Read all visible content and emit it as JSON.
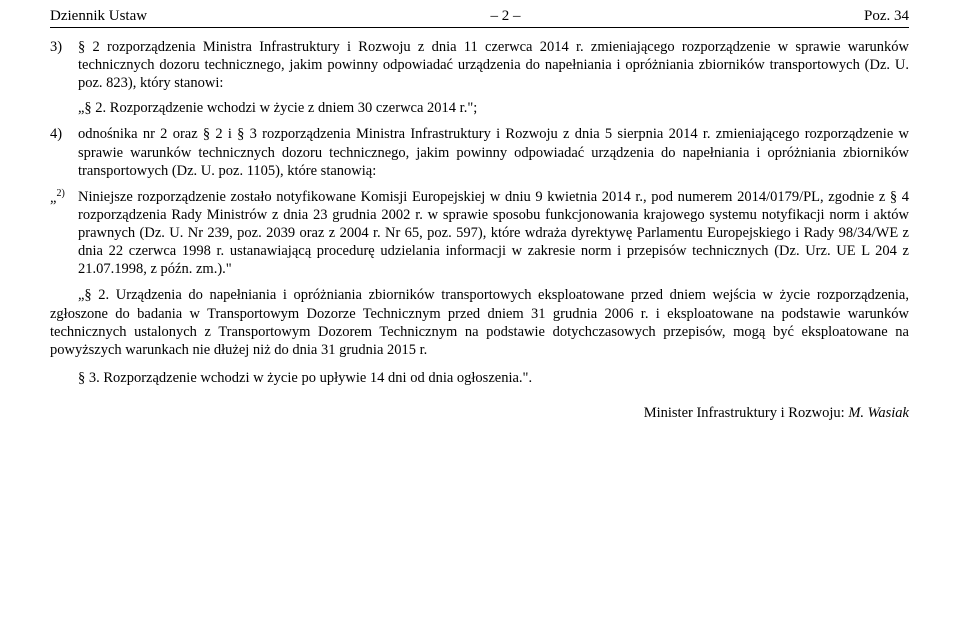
{
  "header": {
    "left": "Dziennik Ustaw",
    "center": "– 2 –",
    "right": "Poz. 34"
  },
  "item3": {
    "num": "3)",
    "text": "§ 2 rozporządzenia Ministra Infrastruktury i Rozwoju z dnia 11 czerwca 2014 r. zmieniającego rozporządzenie w sprawie warunków technicznych dozoru technicznego, jakim powinny odpowiadać urządzenia do napełniania i opróżniania zbiorników transportowych (Dz. U. poz. 823), który stanowi:",
    "quote": "„§ 2. Rozporządzenie wchodzi w życie z dniem 30 czerwca 2014 r.\";"
  },
  "item4": {
    "num": "4)",
    "text": "odnośnika nr 2 oraz § 2 i § 3 rozporządzenia Ministra Infrastruktury i Rozwoju z dnia 5 sierpnia 2014 r. zmieniającego rozporządzenie w sprawie warunków technicznych dozoru technicznego, jakim powinny odpowiadać urządzenia do napełniania i opróżniania zbiorników transportowych (Dz. U. poz. 1105), które stanowią:"
  },
  "footnote": {
    "num_open": "„",
    "num_sup": "2)",
    "text": "Niniejsze rozporządzenie zostało notyfikowane Komisji Europejskiej w dniu 9 kwietnia 2014 r., pod numerem 2014/0179/PL, zgodnie z § 4 rozporządzenia Rady Ministrów z dnia 23 grudnia 2002 r. w sprawie sposobu funkcjonowania krajowego systemu notyfikacji norm i aktów prawnych (Dz. U. Nr 239, poz. 2039 oraz z 2004 r. Nr 65, poz. 597), które wdraża dyrektywę Parlamentu Europejskiego i Rady 98/34/WE z dnia 22 czerwca 1998 r. ustanawiającą procedurę udzielania informacji w zakresie norm i przepisów technicznych (Dz. Urz. UE L 204 z 21.07.1998, z późn. zm.).\""
  },
  "para2": "„§ 2. Urządzenia do napełniania i opróżniania zbiorników transportowych eksploatowane przed dniem wejścia w życie rozporządzenia, zgłoszone do badania w Transportowym Dozorze Technicznym przed dniem 31 grudnia 2006 r. i eksploatowane na podstawie warunków technicznych ustalonych z Transportowym Dozorem Technicznym na podstawie dotychczasowych przepisów, mogą być eksploatowane na powyższych warunkach nie dłużej niż do dnia 31 grudnia 2015 r.",
  "para3": "§ 3. Rozporządzenie wchodzi w życie po upływie 14 dni od dnia ogłoszenia.\".",
  "signature": {
    "title": "Minister Infrastruktury i Rozwoju: ",
    "name": "M. Wasiak"
  }
}
